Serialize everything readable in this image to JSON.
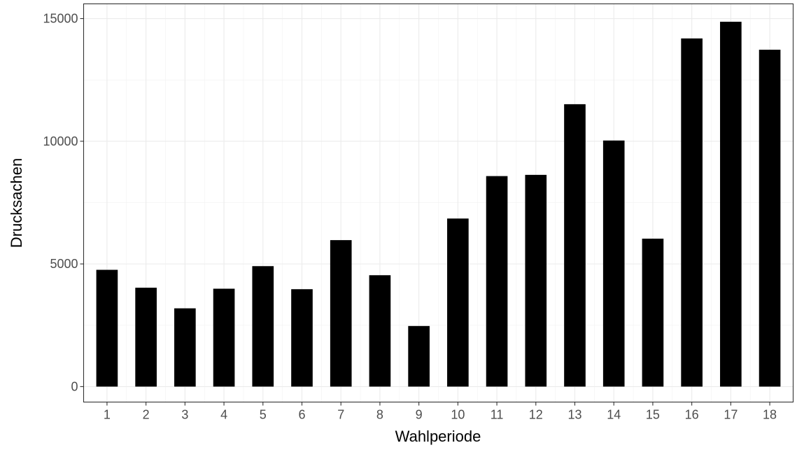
{
  "chart_data": {
    "type": "bar",
    "title": "",
    "xlabel": "Wahlperiode",
    "ylabel": "Drucksachen",
    "categories": [
      "1",
      "2",
      "3",
      "4",
      "5",
      "6",
      "7",
      "8",
      "9",
      "10",
      "11",
      "12",
      "13",
      "14",
      "15",
      "16",
      "17",
      "18"
    ],
    "values": [
      4760,
      4030,
      3190,
      3990,
      4910,
      3970,
      5970,
      4540,
      2470,
      6850,
      8580,
      8630,
      11510,
      10030,
      6030,
      14190,
      14870,
      13730
    ],
    "y_ticks": [
      0,
      5000,
      10000,
      15000
    ],
    "ylim": [
      -630,
      15600
    ],
    "grid": true,
    "legend": "none",
    "bar_color": "#000000",
    "background": "#ffffff"
  }
}
